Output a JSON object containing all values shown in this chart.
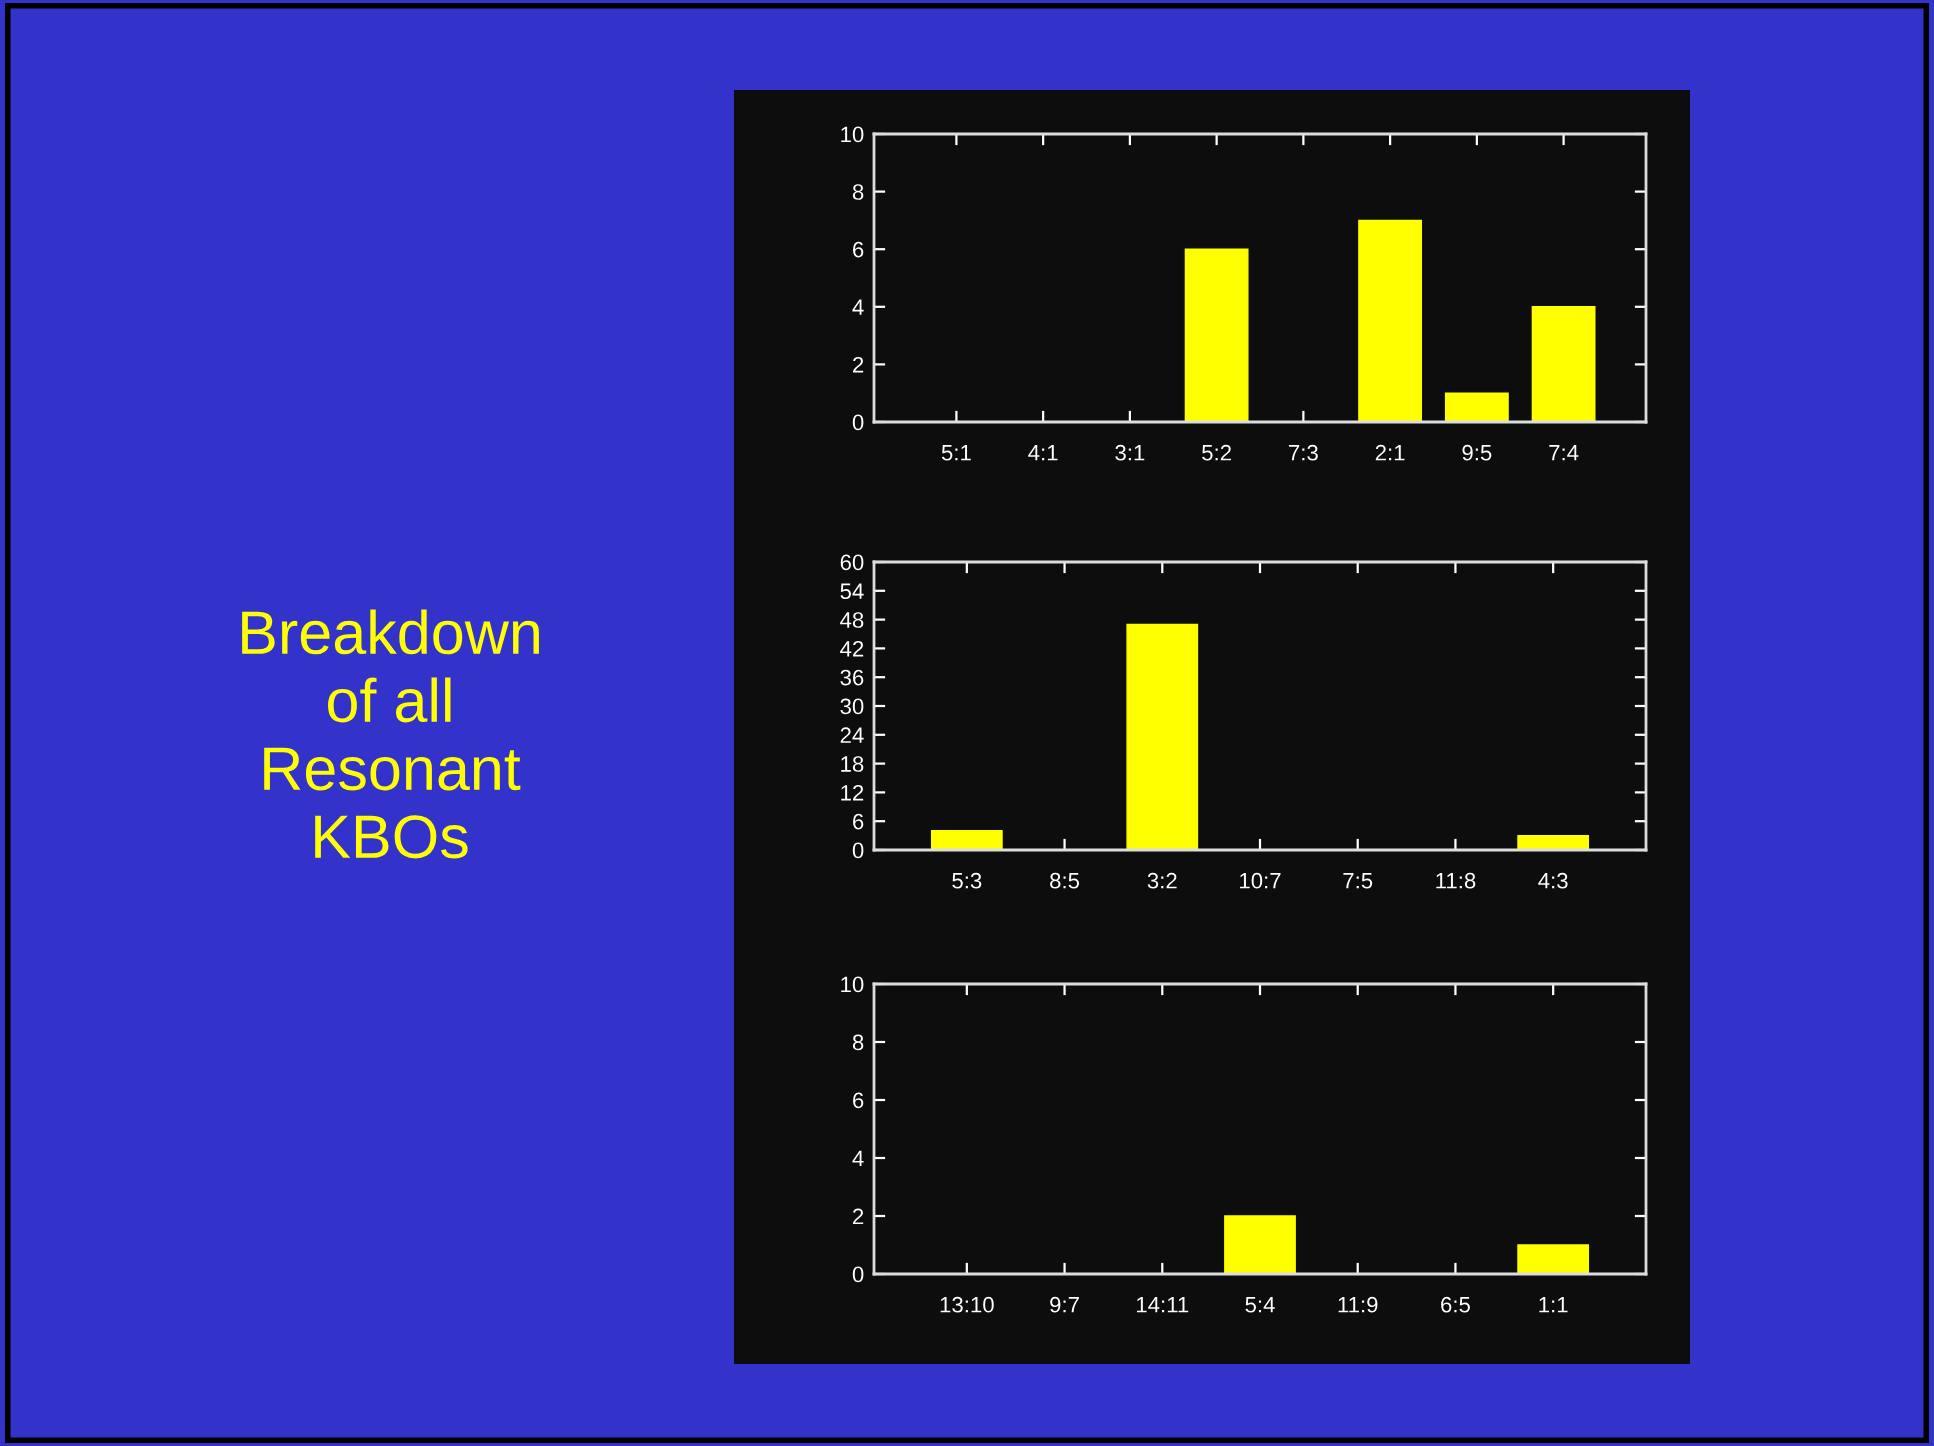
{
  "chart_data": [
    {
      "type": "bar",
      "title": "Breakdown\nof all\nResonant\nKBOs",
      "categories": [
        "5:1",
        "4:1",
        "3:1",
        "5:2",
        "7:3",
        "2:1",
        "9:5",
        "7:4"
      ],
      "values": [
        0,
        0,
        0,
        6,
        0,
        7,
        1,
        4
      ],
      "color": "#ffff00",
      "ylim": [
        0,
        10
      ],
      "yticks": [
        0,
        2,
        4,
        6,
        8,
        10
      ]
    },
    {
      "type": "bar",
      "categories": [
        "5:3",
        "8:5",
        "3:2",
        "10:7",
        "7:5",
        "11:8",
        "4:3"
      ],
      "values": [
        4,
        0,
        47,
        0,
        0,
        0,
        3
      ],
      "color": "#ffff00",
      "ylim": [
        0,
        60
      ],
      "yticks": [
        0,
        6,
        12,
        18,
        24,
        30,
        36,
        42,
        48,
        54,
        60
      ]
    },
    {
      "type": "bar",
      "categories": [
        "13:10",
        "9:7",
        "14:11",
        "5:4",
        "11:9",
        "6:5",
        "1:1"
      ],
      "values": [
        0,
        0,
        0,
        2,
        0,
        0,
        1
      ],
      "color": "#ffff00",
      "ylim": [
        0,
        10
      ],
      "yticks": [
        0,
        2,
        4,
        6,
        8,
        10
      ]
    }
  ]
}
